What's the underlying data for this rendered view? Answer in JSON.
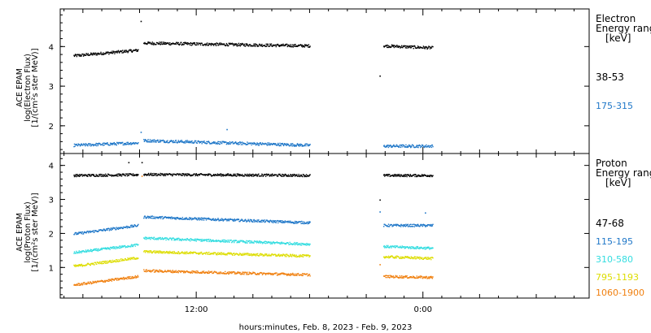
{
  "chart_data": [
    {
      "type": "scatter",
      "panel": "electron",
      "ylabel_lines": [
        "ACE EPAM",
        "log(Electron Flux)",
        "[1/(cm²s ster MeV)]"
      ],
      "y_ticks": [
        2,
        3,
        4
      ],
      "ylim": [
        1.3,
        4.95
      ],
      "legend_title": [
        "Electron",
        "Energy range",
        "[keV]"
      ],
      "series": [
        {
          "name": "38-53",
          "color": "#000000",
          "segments": [
            {
              "x": [
                -6.5,
                -3.1
              ],
              "y": [
                3.78,
                3.92
              ]
            },
            {
              "x": [
                -2.8,
                6.0
              ],
              "y": [
                4.1,
                4.03
              ]
            },
            {
              "x": [
                9.9,
                12.5
              ],
              "y": [
                4.03,
                3.98
              ]
            }
          ],
          "outliers": [
            {
              "x": -2.95,
              "y": 4.65
            },
            {
              "x": 9.7,
              "y": 3.27
            }
          ]
        },
        {
          "name": "175-315",
          "color": "#1f77c8",
          "segments": [
            {
              "x": [
                -6.5,
                -3.1
              ],
              "y": [
                1.52,
                1.58
              ]
            },
            {
              "x": [
                -2.8,
                6.0
              ],
              "y": [
                1.64,
                1.52
              ]
            },
            {
              "x": [
                9.9,
                12.5
              ],
              "y": [
                1.5,
                1.5
              ]
            }
          ],
          "outliers": [
            {
              "x": -2.95,
              "y": 1.85
            },
            {
              "x": 1.6,
              "y": 1.92
            }
          ]
        }
      ]
    },
    {
      "type": "scatter",
      "panel": "proton",
      "ylabel_lines": [
        "ACE EPAM",
        "log(Proton Flux)",
        "[1/(cm²s ster MeV)]"
      ],
      "y_ticks": [
        1,
        2,
        3,
        4
      ],
      "ylim": [
        0.1,
        4.35
      ],
      "legend_title": [
        "Proton",
        "Energy range",
        "[keV]"
      ],
      "series": [
        {
          "name": "47-68",
          "color": "#000000",
          "segments": [
            {
              "x": [
                -6.5,
                -3.1
              ],
              "y": [
                3.72,
                3.74
              ]
            },
            {
              "x": [
                -2.8,
                6.0
              ],
              "y": [
                3.75,
                3.72
              ]
            },
            {
              "x": [
                9.9,
                12.5
              ],
              "y": [
                3.72,
                3.72
              ]
            }
          ],
          "outliers": [
            {
              "x": -3.6,
              "y": 4.1
            },
            {
              "x": -2.9,
              "y": 4.1
            },
            {
              "x": 9.7,
              "y": 3.0
            }
          ]
        },
        {
          "name": "115-195",
          "color": "#1f77c8",
          "segments": [
            {
              "x": [
                -6.5,
                -3.1
              ],
              "y": [
                2.0,
                2.25
              ]
            },
            {
              "x": [
                -2.8,
                6.0
              ],
              "y": [
                2.5,
                2.33
              ]
            },
            {
              "x": [
                9.9,
                12.5
              ],
              "y": [
                2.25,
                2.25
              ]
            }
          ],
          "outliers": [
            {
              "x": 9.7,
              "y": 2.65
            },
            {
              "x": 12.1,
              "y": 2.62
            }
          ]
        },
        {
          "name": "310-580",
          "color": "#33dde0",
          "segments": [
            {
              "x": [
                -6.5,
                -3.1
              ],
              "y": [
                1.45,
                1.68
              ]
            },
            {
              "x": [
                -2.8,
                6.0
              ],
              "y": [
                1.88,
                1.7
              ]
            },
            {
              "x": [
                9.9,
                12.5
              ],
              "y": [
                1.63,
                1.58
              ]
            }
          ],
          "outliers": []
        },
        {
          "name": "795-1193",
          "color": "#dddd00",
          "segments": [
            {
              "x": [
                -6.5,
                -3.1
              ],
              "y": [
                1.05,
                1.3
              ]
            },
            {
              "x": [
                -2.8,
                6.0
              ],
              "y": [
                1.48,
                1.35
              ]
            },
            {
              "x": [
                9.9,
                12.5
              ],
              "y": [
                1.33,
                1.28
              ]
            }
          ],
          "outliers": []
        },
        {
          "name": "1060-1900",
          "color": "#f08010",
          "segments": [
            {
              "x": [
                -6.5,
                -3.1
              ],
              "y": [
                0.5,
                0.75
              ]
            },
            {
              "x": [
                -2.8,
                6.0
              ],
              "y": [
                0.92,
                0.8
              ]
            },
            {
              "x": [
                9.9,
                12.5
              ],
              "y": [
                0.75,
                0.72
              ]
            }
          ],
          "outliers": [
            {
              "x": -2.9,
              "y": 3.7
            },
            {
              "x": 9.7,
              "y": 1.1
            }
          ]
        }
      ]
    }
  ],
  "x_axis": {
    "xlim": [
      -7.2,
      20.8
    ],
    "tick_labels": [
      {
        "x": 0,
        "label": "12:00"
      },
      {
        "x": 12,
        "label": "0:00"
      }
    ],
    "minor_tick_step": 1,
    "label": "hours:minutes, Feb.  8, 2023 - Feb.  9, 2023"
  }
}
